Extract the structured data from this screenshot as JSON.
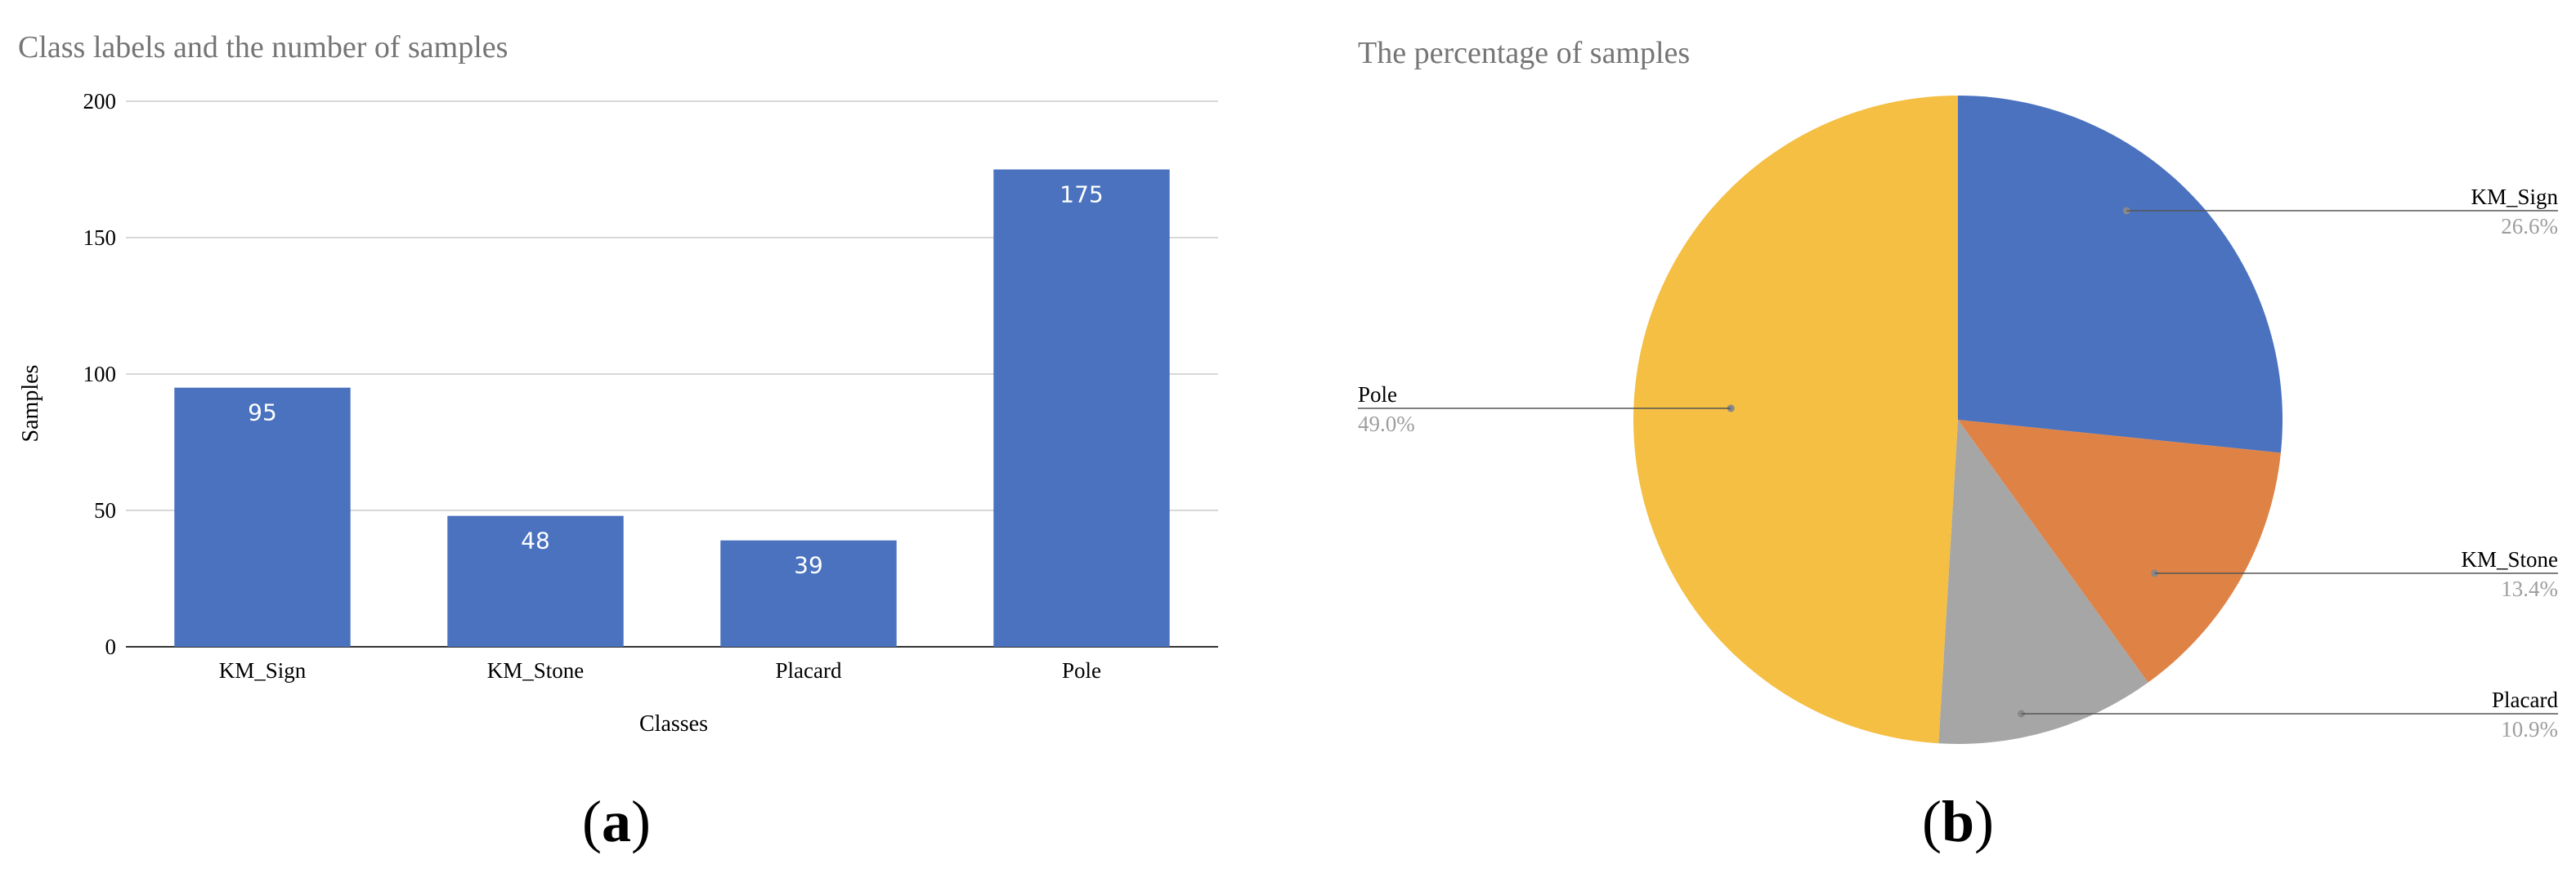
{
  "chart_data": [
    {
      "type": "bar",
      "title": "Class labels and the number of samples",
      "xlabel": "Classes",
      "ylabel": "Samples",
      "categories": [
        "KM_Sign",
        "KM_Stone",
        "Placard",
        "Pole"
      ],
      "values": [
        95,
        48,
        39,
        175
      ],
      "data_labels": [
        "95",
        "48",
        "39",
        "175"
      ],
      "ylim": [
        0,
        200
      ],
      "yticks": [
        0,
        50,
        100,
        150,
        200
      ],
      "grid": true,
      "color": "#4A72BF",
      "panel_label": "(a)"
    },
    {
      "type": "pie",
      "title": "The percentage of samples",
      "slices": [
        {
          "name": "KM_Sign",
          "value": 26.6,
          "label": "26.6%",
          "color": "#4A72BF"
        },
        {
          "name": "KM_Stone",
          "value": 13.4,
          "label": "13.4%",
          "color": "#DF8245"
        },
        {
          "name": "Placard",
          "value": 10.9,
          "label": "10.9%",
          "color": "#A6A6A6"
        },
        {
          "name": "Pole",
          "value": 49.0,
          "label": "49.0%",
          "color": "#F4BF42"
        }
      ],
      "legend": "external labels with leader lines",
      "panel_label": "(b)"
    }
  ]
}
